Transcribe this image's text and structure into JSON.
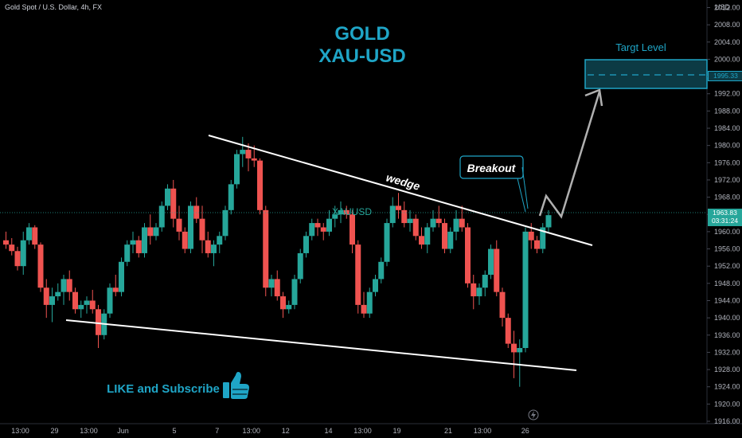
{
  "header": {
    "symbol_info": "Gold Spot / U.S. Dollar, 4h, FX"
  },
  "titles": {
    "line1": "GOLD",
    "line2": "XAU-USD"
  },
  "annotations": {
    "target_label": "Targt Level",
    "target_price": "1995.33",
    "breakout_label": "Breakout",
    "wedge_label": "wedge",
    "symbol_watermark": "XAUUSD",
    "cta": "LIKE and Subscribe"
  },
  "current_price": {
    "price": "1963.83",
    "countdown": "03:31:24"
  },
  "colors": {
    "up": "#26a69a",
    "down": "#ef5350",
    "accent": "#1fa5c6",
    "box_fill": "#0c3a44",
    "trendline": "#ffffff",
    "arrow": "#b0b0b0",
    "background": "#000000"
  },
  "icons": {
    "thumbs_up": "thumbs-up-icon",
    "bolt": "lightning-icon"
  },
  "chart_data": {
    "type": "candlestick",
    "title": "",
    "ylabel": "USD",
    "y_ticks": [
      1916.0,
      1920.0,
      1924.0,
      1928.0,
      1932.0,
      1936.0,
      1940.0,
      1944.0,
      1948.0,
      1952.0,
      1956.0,
      1960.0,
      1964.0,
      1968.0,
      1972.0,
      1976.0,
      1980.0,
      1984.0,
      1988.0,
      1992.0,
      1996.0,
      2000.0,
      2004.0,
      2008.0,
      2012.0
    ],
    "ylim": [
      1916,
      2012
    ],
    "x_ticks": [
      {
        "label": "13:00",
        "bar": 2
      },
      {
        "label": "29",
        "bar": 6
      },
      {
        "label": "13:00",
        "bar": 10
      },
      {
        "label": "Jun",
        "bar": 14
      },
      {
        "label": "5",
        "bar": 20
      },
      {
        "label": "7",
        "bar": 25
      },
      {
        "label": "13:00",
        "bar": 29
      },
      {
        "label": "12",
        "bar": 33
      },
      {
        "label": "14",
        "bar": 38
      },
      {
        "label": "13:00",
        "bar": 42
      },
      {
        "label": "19",
        "bar": 46
      },
      {
        "label": "21",
        "bar": 52
      },
      {
        "label": "13:00",
        "bar": 56
      },
      {
        "label": "26",
        "bar": 61
      }
    ],
    "candles": [
      [
        1958.0,
        1960.0,
        1956.0,
        1957.0
      ],
      [
        1957.0,
        1958.5,
        1954.5,
        1955.5
      ],
      [
        1955.5,
        1956.5,
        1951.0,
        1952.0
      ],
      [
        1952.0,
        1960.0,
        1950.0,
        1958.0
      ],
      [
        1958.0,
        1962.0,
        1957.0,
        1961.0
      ],
      [
        1961.0,
        1961.5,
        1956.0,
        1957.0
      ],
      [
        1957.0,
        1957.5,
        1946.0,
        1947.0
      ],
      [
        1947.0,
        1949.0,
        1940.0,
        1943.0
      ],
      [
        1943.0,
        1947.0,
        1939.0,
        1945.0
      ],
      [
        1945.0,
        1948.0,
        1944.0,
        1946.0
      ],
      [
        1946.0,
        1950.0,
        1943.0,
        1949.0
      ],
      [
        1949.0,
        1951.0,
        1944.0,
        1946.0
      ],
      [
        1946.0,
        1947.0,
        1941.0,
        1942.0
      ],
      [
        1942.0,
        1944.0,
        1940.0,
        1943.0
      ],
      [
        1943.0,
        1945.0,
        1941.0,
        1944.0
      ],
      [
        1944.0,
        1946.5,
        1941.0,
        1942.0
      ],
      [
        1942.0,
        1943.0,
        1933.0,
        1936.0
      ],
      [
        1936.0,
        1942.0,
        1935.0,
        1941.0
      ],
      [
        1941.0,
        1948.0,
        1940.0,
        1947.0
      ],
      [
        1947.0,
        1950.0,
        1945.0,
        1946.0
      ],
      [
        1946.0,
        1954.0,
        1945.0,
        1953.0
      ],
      [
        1953.0,
        1958.0,
        1952.0,
        1957.0
      ],
      [
        1957.0,
        1960.0,
        1955.0,
        1958.0
      ],
      [
        1958.0,
        1959.0,
        1954.0,
        1955.0
      ],
      [
        1955.0,
        1962.0,
        1954.0,
        1961.0
      ],
      [
        1961.0,
        1964.0,
        1957.0,
        1959.0
      ],
      [
        1959.0,
        1962.0,
        1958.0,
        1961.0
      ],
      [
        1961.0,
        1967.0,
        1960.0,
        1966.0
      ],
      [
        1966.0,
        1971.0,
        1965.0,
        1970.0
      ],
      [
        1970.0,
        1972.0,
        1961.0,
        1963.0
      ],
      [
        1963.0,
        1966.0,
        1958.0,
        1960.0
      ],
      [
        1960.0,
        1961.0,
        1955.0,
        1956.0
      ],
      [
        1956.0,
        1967.0,
        1955.0,
        1966.0
      ],
      [
        1966.0,
        1968.0,
        1962.0,
        1963.0
      ],
      [
        1963.0,
        1966.0,
        1955.0,
        1958.0
      ],
      [
        1958.0,
        1960.0,
        1954.0,
        1955.0
      ],
      [
        1955.0,
        1958.0,
        1952.0,
        1957.0
      ],
      [
        1957.0,
        1960.0,
        1955.0,
        1959.0
      ],
      [
        1959.0,
        1966.0,
        1958.0,
        1965.0
      ],
      [
        1965.0,
        1972.0,
        1964.0,
        1971.0
      ],
      [
        1971.0,
        1979.0,
        1970.0,
        1978.0
      ],
      [
        1978.0,
        1982.0,
        1975.0,
        1979.0
      ],
      [
        1979.0,
        1980.5,
        1974.0,
        1977.0
      ],
      [
        1977.0,
        1980.0,
        1975.0,
        1976.5
      ],
      [
        1976.5,
        1977.0,
        1964.0,
        1965.0
      ],
      [
        1965.0,
        1966.0,
        1945.0,
        1947.0
      ],
      [
        1947.0,
        1950.0,
        1945.0,
        1949.0
      ],
      [
        1949.0,
        1951.0,
        1944.0,
        1945.0
      ],
      [
        1945.0,
        1946.0,
        1940.0,
        1942.0
      ],
      [
        1942.0,
        1944.0,
        1941.0,
        1943.0
      ],
      [
        1943.0,
        1950.0,
        1942.0,
        1949.0
      ],
      [
        1949.0,
        1956.0,
        1948.0,
        1955.0
      ],
      [
        1955.0,
        1960.0,
        1954.0,
        1959.0
      ],
      [
        1959.0,
        1963.0,
        1958.0,
        1962.0
      ],
      [
        1962.0,
        1963.0,
        1959.0,
        1961.0
      ],
      [
        1961.0,
        1962.0,
        1958.0,
        1960.0
      ],
      [
        1960.0,
        1965.0,
        1959.0,
        1963.0
      ],
      [
        1963.0,
        1966.0,
        1961.0,
        1964.0
      ],
      [
        1964.0,
        1967.0,
        1962.0,
        1965.0
      ],
      [
        1965.0,
        1966.0,
        1963.0,
        1964.0
      ],
      [
        1964.0,
        1965.0,
        1955.0,
        1957.0
      ],
      [
        1957.0,
        1958.0,
        1941.0,
        1943.0
      ],
      [
        1943.0,
        1946.0,
        1940.0,
        1941.0
      ],
      [
        1941.0,
        1947.0,
        1940.0,
        1946.0
      ],
      [
        1946.0,
        1950.0,
        1945.0,
        1949.0
      ],
      [
        1949.0,
        1954.0,
        1948.0,
        1953.0
      ],
      [
        1953.0,
        1963.0,
        1952.0,
        1962.0
      ],
      [
        1962.0,
        1968.0,
        1961.0,
        1966.0
      ],
      [
        1966.0,
        1969.0,
        1963.0,
        1965.0
      ],
      [
        1965.0,
        1967.0,
        1961.0,
        1962.0
      ],
      [
        1962.0,
        1965.0,
        1960.0,
        1963.0
      ],
      [
        1963.0,
        1964.0,
        1958.0,
        1959.0
      ],
      [
        1959.0,
        1961.0,
        1956.0,
        1957.0
      ],
      [
        1957.0,
        1962.0,
        1955.0,
        1961.0
      ],
      [
        1961.0,
        1965.0,
        1960.0,
        1963.0
      ],
      [
        1963.0,
        1966.0,
        1961.0,
        1962.0
      ],
      [
        1962.0,
        1963.0,
        1955.0,
        1956.0
      ],
      [
        1956.0,
        1961.0,
        1955.0,
        1960.0
      ],
      [
        1960.0,
        1965.0,
        1958.0,
        1963.0
      ],
      [
        1963.0,
        1966.0,
        1960.0,
        1961.0
      ],
      [
        1961.0,
        1962.0,
        1947.0,
        1948.0
      ],
      [
        1948.0,
        1950.0,
        1942.0,
        1945.0
      ],
      [
        1945.0,
        1948.0,
        1943.0,
        1947.0
      ],
      [
        1947.0,
        1951.0,
        1945.0,
        1950.0
      ],
      [
        1950.0,
        1957.0,
        1949.0,
        1956.0
      ],
      [
        1956.0,
        1958.0,
        1945.0,
        1946.0
      ],
      [
        1946.0,
        1947.0,
        1938.0,
        1940.0
      ],
      [
        1940.0,
        1941.0,
        1933.0,
        1934.0
      ],
      [
        1934.0,
        1937.0,
        1926.0,
        1932.0
      ],
      [
        1932.0,
        1935.0,
        1924.0,
        1933.0
      ],
      [
        1933.0,
        1961.0,
        1932.0,
        1960.0
      ],
      [
        1960.0,
        1962.0,
        1956.0,
        1958.0
      ],
      [
        1958.0,
        1959.0,
        1955.0,
        1956.0
      ],
      [
        1956.0,
        1962.0,
        1955.0,
        1961.0
      ],
      [
        1961.0,
        1965.0,
        1960.0,
        1963.83
      ]
    ]
  }
}
